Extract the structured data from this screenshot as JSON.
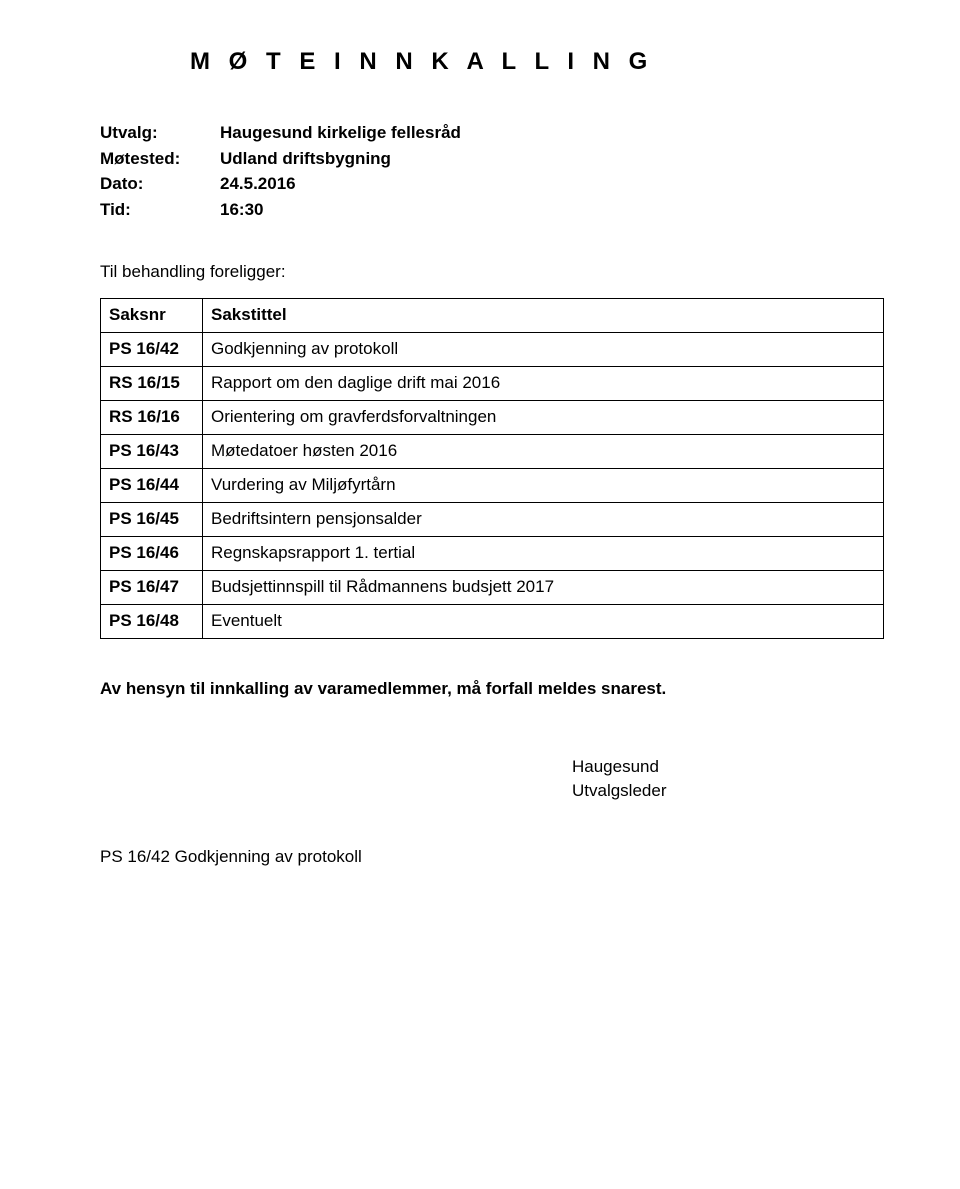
{
  "title": "M Ø T E I N N K A L L I N G",
  "meta": {
    "utvalg_label": "Utvalg:",
    "utvalg_value": "Haugesund kirkelige fellesråd",
    "motested_label": "Møtested:",
    "motested_value": "Udland driftsbygning",
    "dato_label": "Dato:",
    "dato_value": "24.5.2016",
    "tid_label": "Tid:",
    "tid_value": "16:30"
  },
  "preamble": "Til behandling foreligger:",
  "table": {
    "header_ref": "Saksnr",
    "header_title": "Sakstittel",
    "rows": [
      {
        "ref": "PS 16/42",
        "title": "Godkjenning av protokoll"
      },
      {
        "ref": "RS 16/15",
        "title": "Rapport om den daglige drift mai 2016"
      },
      {
        "ref": "RS 16/16",
        "title": "Orientering om gravferdsforvaltningen"
      },
      {
        "ref": "PS 16/43",
        "title": "Møtedatoer høsten 2016"
      },
      {
        "ref": "PS 16/44",
        "title": "Vurdering av Miljøfyrtårn"
      },
      {
        "ref": "PS 16/45",
        "title": "Bedriftsintern pensjonsalder"
      },
      {
        "ref": "PS 16/46",
        "title": "Regnskapsrapport 1. tertial"
      },
      {
        "ref": "PS 16/47",
        "title": "Budsjettinnspill til Rådmannens budsjett 2017"
      },
      {
        "ref": "PS 16/48",
        "title": "Eventuelt"
      }
    ]
  },
  "notice": "Av hensyn til innkalling av varamedlemmer, må forfall meldes snarest.",
  "signature": {
    "place": "Haugesund",
    "role": "Utvalgsleder"
  },
  "footer": "PS 16/42 Godkjenning av protokoll"
}
